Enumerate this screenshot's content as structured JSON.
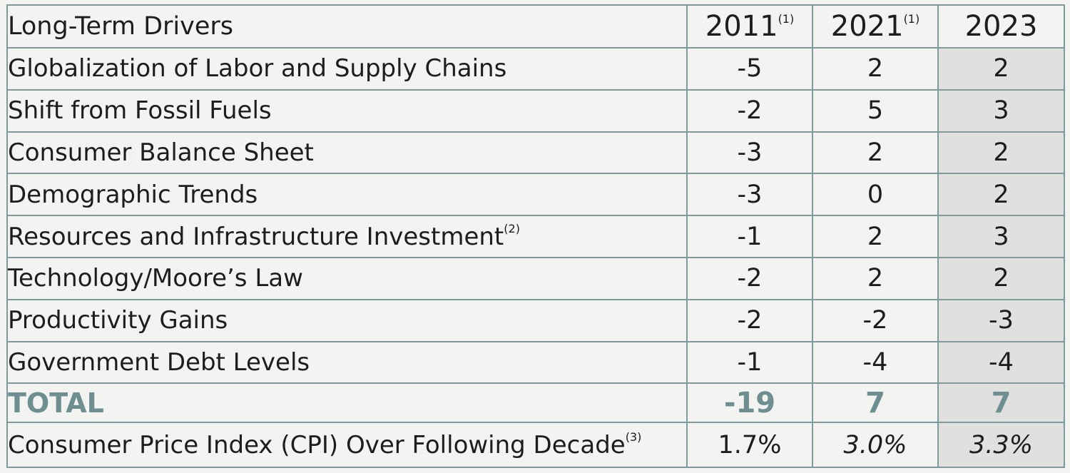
{
  "table": {
    "header": {
      "label": "Long-Term Drivers",
      "years": [
        {
          "year": "2011",
          "note": "(1)"
        },
        {
          "year": "2021",
          "note": "(1)"
        },
        {
          "year": "2023",
          "note": ""
        }
      ]
    },
    "rows": [
      {
        "label": "Globalization of Labor and Supply Chains",
        "note": "",
        "values": [
          "-5",
          "2",
          "2"
        ]
      },
      {
        "label": "Shift from Fossil Fuels",
        "note": "",
        "values": [
          "-2",
          "5",
          "3"
        ]
      },
      {
        "label": "Consumer Balance Sheet",
        "note": "",
        "values": [
          "-3",
          "2",
          "2"
        ]
      },
      {
        "label": "Demographic Trends",
        "note": "",
        "values": [
          "-3",
          "0",
          "2"
        ]
      },
      {
        "label": "Resources and Infrastructure Investment",
        "note": "(2)",
        "values": [
          "-1",
          "2",
          "3"
        ]
      },
      {
        "label": "Technology/Moore’s Law",
        "note": "",
        "values": [
          "-2",
          "2",
          "2"
        ]
      },
      {
        "label": "Productivity Gains",
        "note": "",
        "values": [
          "-2",
          "-2",
          "-3"
        ]
      },
      {
        "label": "Government Debt Levels",
        "note": "",
        "values": [
          "-1",
          "-4",
          "-4"
        ]
      }
    ],
    "total": {
      "label": "TOTAL",
      "values": [
        "-19",
        "7",
        "7"
      ]
    },
    "cpi": {
      "label": "Consumer Price Index (CPI) Over Following Decade",
      "note": "(3)",
      "values": [
        "1.7%",
        "3.0%",
        "3.3%"
      ]
    }
  },
  "colors": {
    "header_text": "#6e8e90",
    "border": "#7d9a9c",
    "background": "#f3f3f1",
    "shaded_column": "#e0e0de"
  },
  "chart_data": {
    "type": "table",
    "columns": [
      "Long-Term Drivers",
      "2011",
      "2021",
      "2023"
    ],
    "rows": [
      [
        "Globalization of Labor and Supply Chains",
        -5,
        2,
        2
      ],
      [
        "Shift from Fossil Fuels",
        -2,
        5,
        3
      ],
      [
        "Consumer Balance Sheet",
        -3,
        2,
        2
      ],
      [
        "Demographic Trends",
        -3,
        0,
        2
      ],
      [
        "Resources and Infrastructure Investment",
        -1,
        2,
        3
      ],
      [
        "Technology/Moore’s Law",
        -2,
        2,
        2
      ],
      [
        "Productivity Gains",
        -2,
        -2,
        -3
      ],
      [
        "Government Debt Levels",
        -1,
        -4,
        -4
      ],
      [
        "TOTAL",
        -19,
        7,
        7
      ],
      [
        "Consumer Price Index (CPI) Over Following Decade",
        "1.7%",
        "3.0%",
        "3.3%"
      ]
    ]
  }
}
